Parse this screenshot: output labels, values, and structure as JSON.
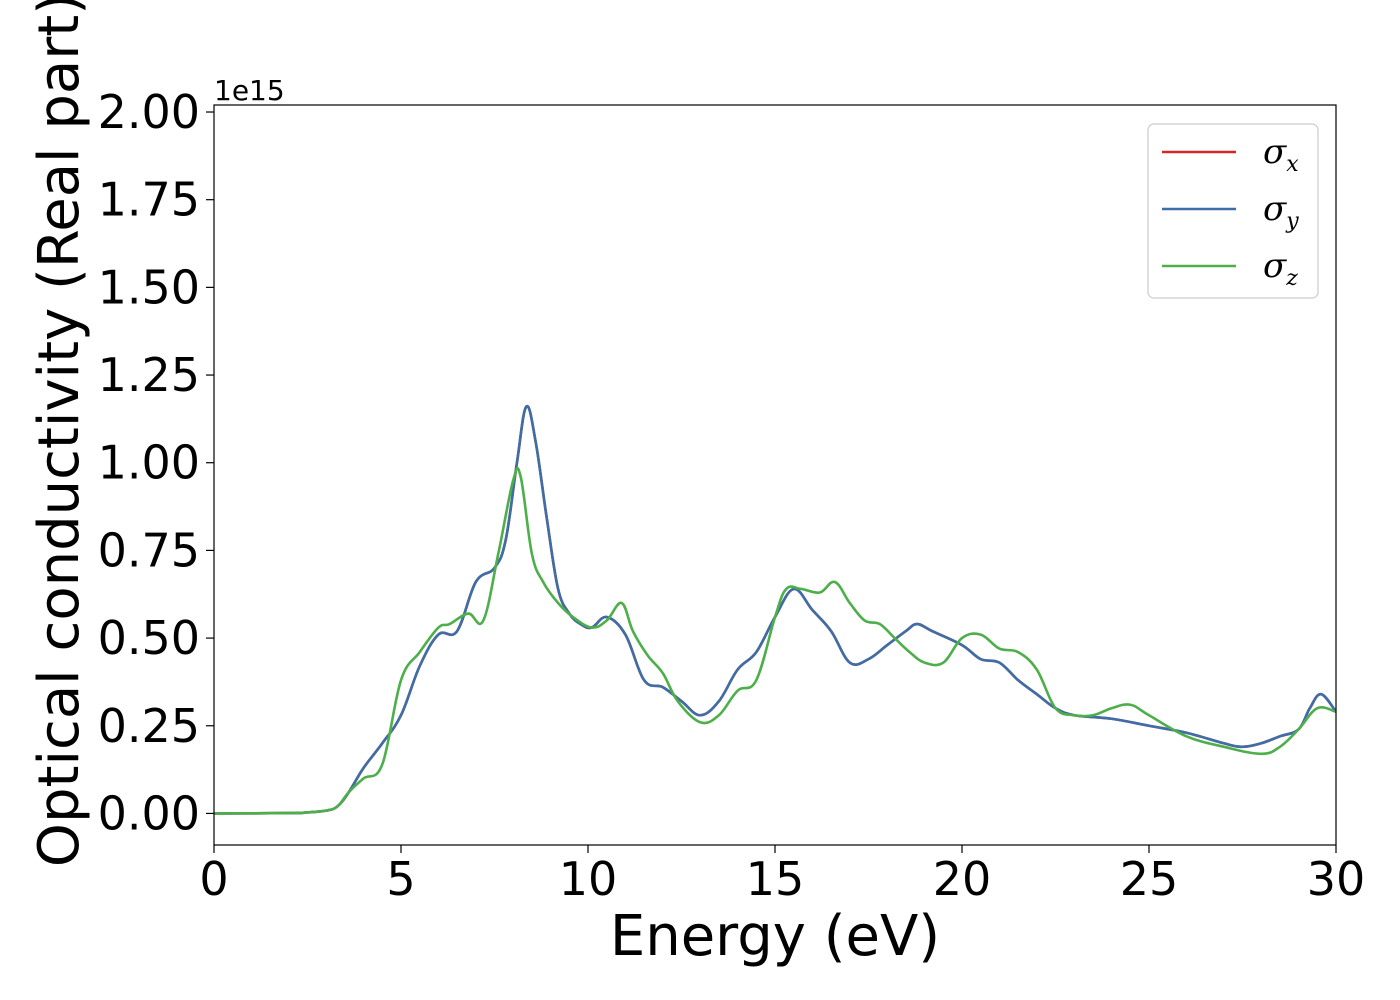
{
  "chart_data": {
    "type": "line",
    "xlabel": "Energy (eV)",
    "ylabel": "Optical conductivity (Real part)",
    "y_offset_label": "1e15",
    "xlim": [
      0,
      30
    ],
    "ylim": [
      -0.09,
      2.02
    ],
    "x_ticks": [
      0,
      5,
      10,
      15,
      20,
      25,
      30
    ],
    "x_tick_labels": [
      "0",
      "5",
      "10",
      "15",
      "20",
      "25",
      "30"
    ],
    "y_ticks": [
      0,
      0.25,
      0.5,
      0.75,
      1.0,
      1.25,
      1.5,
      1.75,
      2.0
    ],
    "y_tick_labels": [
      "0.00",
      "0.25",
      "0.50",
      "0.75",
      "1.00",
      "1.25",
      "1.50",
      "1.75",
      "2.00"
    ],
    "grid": false,
    "legend_position": "top-right",
    "series": [
      {
        "name": "σx",
        "legend_symbol": "σ",
        "legend_sub": "x",
        "color": "#d62728",
        "x": [
          0,
          2,
          2.5,
          3,
          3.3,
          3.6,
          4,
          4.5,
          5,
          5.5,
          6,
          6.5,
          7,
          7.5,
          7.8,
          8.1,
          8.35,
          8.6,
          8.9,
          9.2,
          9.5,
          9.8,
          10.1,
          10.5,
          11,
          11.5,
          12,
          12.5,
          13,
          13.5,
          14,
          14.5,
          15,
          15.5,
          16,
          16.5,
          17,
          17.5,
          18,
          18.5,
          18.8,
          19.2,
          20,
          20.5,
          21,
          21.5,
          22,
          22.5,
          23,
          24,
          25,
          26,
          27,
          27.5,
          28,
          28.5,
          29,
          29.3,
          29.6,
          30
        ],
        "y": [
          0,
          0.001,
          0.003,
          0.008,
          0.02,
          0.06,
          0.13,
          0.2,
          0.28,
          0.42,
          0.51,
          0.52,
          0.66,
          0.7,
          0.78,
          1.0,
          1.16,
          1.06,
          0.84,
          0.64,
          0.57,
          0.54,
          0.53,
          0.56,
          0.51,
          0.38,
          0.36,
          0.32,
          0.28,
          0.32,
          0.41,
          0.46,
          0.56,
          0.64,
          0.58,
          0.52,
          0.43,
          0.44,
          0.48,
          0.52,
          0.54,
          0.52,
          0.48,
          0.44,
          0.43,
          0.38,
          0.34,
          0.3,
          0.28,
          0.27,
          0.25,
          0.23,
          0.2,
          0.19,
          0.2,
          0.22,
          0.24,
          0.3,
          0.34,
          0.29
        ]
      },
      {
        "name": "σy",
        "legend_symbol": "σ",
        "legend_sub": "y",
        "color": "#3c6ea8",
        "x": [
          0,
          2,
          2.5,
          3,
          3.3,
          3.6,
          4,
          4.5,
          5,
          5.5,
          6,
          6.5,
          7,
          7.5,
          7.8,
          8.1,
          8.35,
          8.6,
          8.9,
          9.2,
          9.5,
          9.8,
          10.1,
          10.5,
          11,
          11.5,
          12,
          12.5,
          13,
          13.5,
          14,
          14.5,
          15,
          15.5,
          16,
          16.5,
          17,
          17.5,
          18,
          18.5,
          18.8,
          19.2,
          20,
          20.5,
          21,
          21.5,
          22,
          22.5,
          23,
          24,
          25,
          26,
          27,
          27.5,
          28,
          28.5,
          29,
          29.3,
          29.6,
          30
        ],
        "y": [
          0,
          0.001,
          0.003,
          0.008,
          0.02,
          0.06,
          0.13,
          0.2,
          0.28,
          0.42,
          0.51,
          0.52,
          0.66,
          0.7,
          0.78,
          1.0,
          1.16,
          1.06,
          0.84,
          0.64,
          0.57,
          0.54,
          0.53,
          0.56,
          0.51,
          0.38,
          0.36,
          0.32,
          0.28,
          0.32,
          0.41,
          0.46,
          0.56,
          0.64,
          0.58,
          0.52,
          0.43,
          0.44,
          0.48,
          0.52,
          0.54,
          0.52,
          0.48,
          0.44,
          0.43,
          0.38,
          0.34,
          0.3,
          0.28,
          0.27,
          0.25,
          0.23,
          0.2,
          0.19,
          0.2,
          0.22,
          0.24,
          0.3,
          0.34,
          0.29
        ]
      },
      {
        "name": "σz",
        "legend_symbol": "σ",
        "legend_sub": "z",
        "color": "#4daf4a",
        "x": [
          0,
          2,
          2.5,
          3,
          3.3,
          3.6,
          4,
          4.5,
          5,
          5.5,
          6,
          6.3,
          6.8,
          7.2,
          7.6,
          8.0,
          8.2,
          8.5,
          8.8,
          9.2,
          9.6,
          10.1,
          10.5,
          10.9,
          11.2,
          11.6,
          12,
          12.4,
          13,
          13.5,
          14,
          14.5,
          15,
          15.3,
          15.7,
          16.2,
          16.6,
          17,
          17.4,
          17.8,
          18.2,
          18.6,
          19,
          19.5,
          20,
          20.5,
          21,
          21.5,
          22,
          22.5,
          23,
          23.5,
          24,
          24.5,
          25,
          26,
          27,
          28,
          28.5,
          29,
          29.5,
          30
        ],
        "y": [
          0,
          0.001,
          0.003,
          0.008,
          0.02,
          0.06,
          0.1,
          0.14,
          0.38,
          0.46,
          0.53,
          0.54,
          0.57,
          0.55,
          0.74,
          0.95,
          0.96,
          0.74,
          0.66,
          0.6,
          0.56,
          0.53,
          0.55,
          0.6,
          0.52,
          0.45,
          0.4,
          0.32,
          0.26,
          0.28,
          0.35,
          0.38,
          0.56,
          0.64,
          0.64,
          0.63,
          0.66,
          0.6,
          0.55,
          0.54,
          0.5,
          0.46,
          0.43,
          0.43,
          0.5,
          0.51,
          0.47,
          0.46,
          0.41,
          0.3,
          0.28,
          0.28,
          0.3,
          0.31,
          0.28,
          0.22,
          0.19,
          0.17,
          0.19,
          0.24,
          0.3,
          0.29
        ]
      }
    ]
  }
}
